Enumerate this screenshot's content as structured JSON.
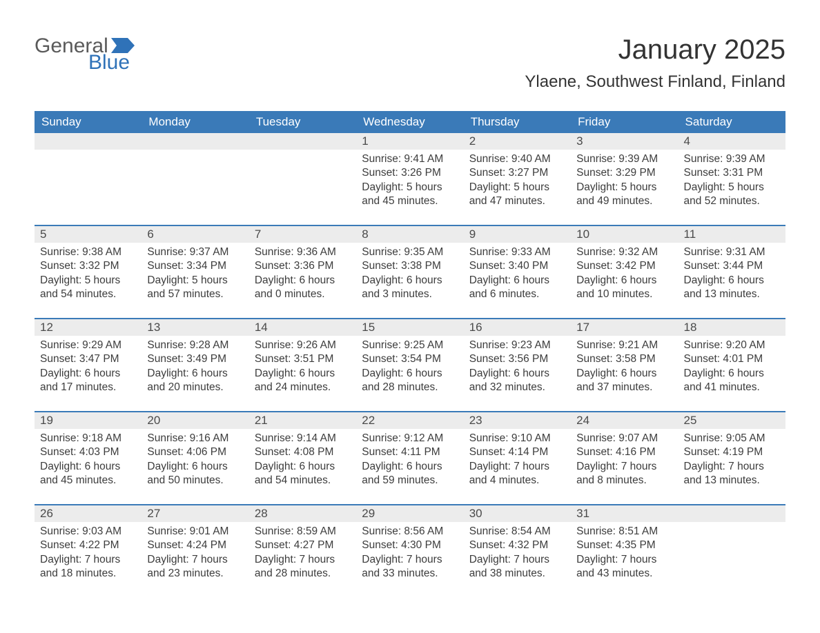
{
  "logo": {
    "general": "General",
    "blue": "Blue",
    "flag_color": "#2f72b8"
  },
  "title": "January 2025",
  "location": "Ylaene, Southwest Finland, Finland",
  "colors": {
    "header_bg": "#3a7ab8",
    "header_text": "#ffffff",
    "daynum_bg": "#ececec",
    "text": "#3c3c3c",
    "separator": "#3a7ab8",
    "page_bg": "#ffffff"
  },
  "daysOfWeek": [
    "Sunday",
    "Monday",
    "Tuesday",
    "Wednesday",
    "Thursday",
    "Friday",
    "Saturday"
  ],
  "weeks": [
    [
      {
        "n": "",
        "sunrise": "",
        "sunset": "",
        "dl1": "",
        "dl2": ""
      },
      {
        "n": "",
        "sunrise": "",
        "sunset": "",
        "dl1": "",
        "dl2": ""
      },
      {
        "n": "",
        "sunrise": "",
        "sunset": "",
        "dl1": "",
        "dl2": ""
      },
      {
        "n": "1",
        "sunrise": "Sunrise: 9:41 AM",
        "sunset": "Sunset: 3:26 PM",
        "dl1": "Daylight: 5 hours",
        "dl2": "and 45 minutes."
      },
      {
        "n": "2",
        "sunrise": "Sunrise: 9:40 AM",
        "sunset": "Sunset: 3:27 PM",
        "dl1": "Daylight: 5 hours",
        "dl2": "and 47 minutes."
      },
      {
        "n": "3",
        "sunrise": "Sunrise: 9:39 AM",
        "sunset": "Sunset: 3:29 PM",
        "dl1": "Daylight: 5 hours",
        "dl2": "and 49 minutes."
      },
      {
        "n": "4",
        "sunrise": "Sunrise: 9:39 AM",
        "sunset": "Sunset: 3:31 PM",
        "dl1": "Daylight: 5 hours",
        "dl2": "and 52 minutes."
      }
    ],
    [
      {
        "n": "5",
        "sunrise": "Sunrise: 9:38 AM",
        "sunset": "Sunset: 3:32 PM",
        "dl1": "Daylight: 5 hours",
        "dl2": "and 54 minutes."
      },
      {
        "n": "6",
        "sunrise": "Sunrise: 9:37 AM",
        "sunset": "Sunset: 3:34 PM",
        "dl1": "Daylight: 5 hours",
        "dl2": "and 57 minutes."
      },
      {
        "n": "7",
        "sunrise": "Sunrise: 9:36 AM",
        "sunset": "Sunset: 3:36 PM",
        "dl1": "Daylight: 6 hours",
        "dl2": "and 0 minutes."
      },
      {
        "n": "8",
        "sunrise": "Sunrise: 9:35 AM",
        "sunset": "Sunset: 3:38 PM",
        "dl1": "Daylight: 6 hours",
        "dl2": "and 3 minutes."
      },
      {
        "n": "9",
        "sunrise": "Sunrise: 9:33 AM",
        "sunset": "Sunset: 3:40 PM",
        "dl1": "Daylight: 6 hours",
        "dl2": "and 6 minutes."
      },
      {
        "n": "10",
        "sunrise": "Sunrise: 9:32 AM",
        "sunset": "Sunset: 3:42 PM",
        "dl1": "Daylight: 6 hours",
        "dl2": "and 10 minutes."
      },
      {
        "n": "11",
        "sunrise": "Sunrise: 9:31 AM",
        "sunset": "Sunset: 3:44 PM",
        "dl1": "Daylight: 6 hours",
        "dl2": "and 13 minutes."
      }
    ],
    [
      {
        "n": "12",
        "sunrise": "Sunrise: 9:29 AM",
        "sunset": "Sunset: 3:47 PM",
        "dl1": "Daylight: 6 hours",
        "dl2": "and 17 minutes."
      },
      {
        "n": "13",
        "sunrise": "Sunrise: 9:28 AM",
        "sunset": "Sunset: 3:49 PM",
        "dl1": "Daylight: 6 hours",
        "dl2": "and 20 minutes."
      },
      {
        "n": "14",
        "sunrise": "Sunrise: 9:26 AM",
        "sunset": "Sunset: 3:51 PM",
        "dl1": "Daylight: 6 hours",
        "dl2": "and 24 minutes."
      },
      {
        "n": "15",
        "sunrise": "Sunrise: 9:25 AM",
        "sunset": "Sunset: 3:54 PM",
        "dl1": "Daylight: 6 hours",
        "dl2": "and 28 minutes."
      },
      {
        "n": "16",
        "sunrise": "Sunrise: 9:23 AM",
        "sunset": "Sunset: 3:56 PM",
        "dl1": "Daylight: 6 hours",
        "dl2": "and 32 minutes."
      },
      {
        "n": "17",
        "sunrise": "Sunrise: 9:21 AM",
        "sunset": "Sunset: 3:58 PM",
        "dl1": "Daylight: 6 hours",
        "dl2": "and 37 minutes."
      },
      {
        "n": "18",
        "sunrise": "Sunrise: 9:20 AM",
        "sunset": "Sunset: 4:01 PM",
        "dl1": "Daylight: 6 hours",
        "dl2": "and 41 minutes."
      }
    ],
    [
      {
        "n": "19",
        "sunrise": "Sunrise: 9:18 AM",
        "sunset": "Sunset: 4:03 PM",
        "dl1": "Daylight: 6 hours",
        "dl2": "and 45 minutes."
      },
      {
        "n": "20",
        "sunrise": "Sunrise: 9:16 AM",
        "sunset": "Sunset: 4:06 PM",
        "dl1": "Daylight: 6 hours",
        "dl2": "and 50 minutes."
      },
      {
        "n": "21",
        "sunrise": "Sunrise: 9:14 AM",
        "sunset": "Sunset: 4:08 PM",
        "dl1": "Daylight: 6 hours",
        "dl2": "and 54 minutes."
      },
      {
        "n": "22",
        "sunrise": "Sunrise: 9:12 AM",
        "sunset": "Sunset: 4:11 PM",
        "dl1": "Daylight: 6 hours",
        "dl2": "and 59 minutes."
      },
      {
        "n": "23",
        "sunrise": "Sunrise: 9:10 AM",
        "sunset": "Sunset: 4:14 PM",
        "dl1": "Daylight: 7 hours",
        "dl2": "and 4 minutes."
      },
      {
        "n": "24",
        "sunrise": "Sunrise: 9:07 AM",
        "sunset": "Sunset: 4:16 PM",
        "dl1": "Daylight: 7 hours",
        "dl2": "and 8 minutes."
      },
      {
        "n": "25",
        "sunrise": "Sunrise: 9:05 AM",
        "sunset": "Sunset: 4:19 PM",
        "dl1": "Daylight: 7 hours",
        "dl2": "and 13 minutes."
      }
    ],
    [
      {
        "n": "26",
        "sunrise": "Sunrise: 9:03 AM",
        "sunset": "Sunset: 4:22 PM",
        "dl1": "Daylight: 7 hours",
        "dl2": "and 18 minutes."
      },
      {
        "n": "27",
        "sunrise": "Sunrise: 9:01 AM",
        "sunset": "Sunset: 4:24 PM",
        "dl1": "Daylight: 7 hours",
        "dl2": "and 23 minutes."
      },
      {
        "n": "28",
        "sunrise": "Sunrise: 8:59 AM",
        "sunset": "Sunset: 4:27 PM",
        "dl1": "Daylight: 7 hours",
        "dl2": "and 28 minutes."
      },
      {
        "n": "29",
        "sunrise": "Sunrise: 8:56 AM",
        "sunset": "Sunset: 4:30 PM",
        "dl1": "Daylight: 7 hours",
        "dl2": "and 33 minutes."
      },
      {
        "n": "30",
        "sunrise": "Sunrise: 8:54 AM",
        "sunset": "Sunset: 4:32 PM",
        "dl1": "Daylight: 7 hours",
        "dl2": "and 38 minutes."
      },
      {
        "n": "31",
        "sunrise": "Sunrise: 8:51 AM",
        "sunset": "Sunset: 4:35 PM",
        "dl1": "Daylight: 7 hours",
        "dl2": "and 43 minutes."
      },
      {
        "n": "",
        "sunrise": "",
        "sunset": "",
        "dl1": "",
        "dl2": ""
      }
    ]
  ]
}
